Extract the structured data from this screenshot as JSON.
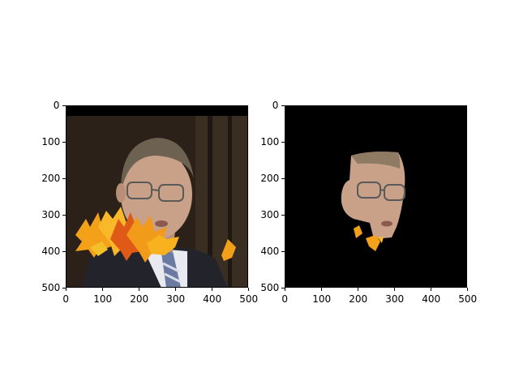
{
  "figure": {
    "panels": [
      {
        "id": "left",
        "description_icons": [
          "man-portrait",
          "autumn-leaves-overlay"
        ],
        "x_ticks": [
          "0",
          "100",
          "200",
          "300",
          "400",
          "500"
        ],
        "y_ticks": [
          "0",
          "100",
          "200",
          "300",
          "400",
          "500"
        ]
      },
      {
        "id": "right",
        "description_icons": [
          "face-segmentation-mask"
        ],
        "x_ticks": [
          "0",
          "100",
          "200",
          "300",
          "400",
          "500"
        ],
        "y_ticks": [
          "0",
          "100",
          "200",
          "300",
          "400",
          "500"
        ]
      }
    ],
    "colors": {
      "background_dark": "#2b2118",
      "skin": "#c9a189",
      "suit": "#23242b",
      "leaf_orange": "#f4a11a",
      "leaf_red": "#e05a17"
    }
  }
}
